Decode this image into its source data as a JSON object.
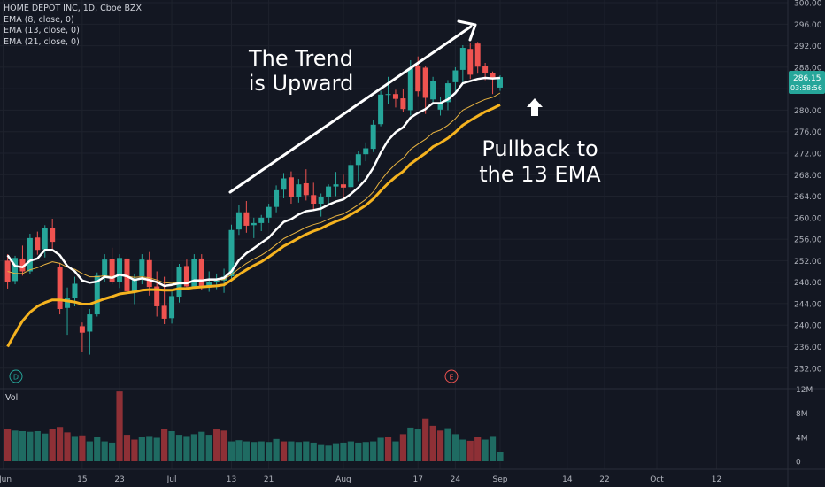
{
  "legend": {
    "title": "HOME DEPOT INC, 1D, Cboe BZX",
    "ema8": "EMA (8, close, 0)",
    "ema13": "EMA (13, close, 0)",
    "ema21": "EMA (21, close, 0)"
  },
  "volume_label": "Vol",
  "annotations": {
    "trend_line1": "The Trend",
    "trend_line2": "is Upward",
    "pullback_line1": "Pullback to",
    "pullback_line2": "the 13 EMA"
  },
  "price_badge": {
    "price": "286.15",
    "timer": "03:58:56"
  },
  "event_markers": {
    "dividend": "D",
    "earnings": "E"
  },
  "colors": {
    "up": "#26a69a",
    "down": "#ef5350",
    "vol_up": "#1f6b62",
    "vol_down": "#8e3036",
    "ema8": "#ffffff",
    "ema13": "#e8b341",
    "ema21": "#f5b31f",
    "background": "#131722",
    "grid": "#1e222d"
  },
  "chart_data": {
    "type": "candlestick",
    "title": "HOME DEPOT INC, 1D, Cboe BZX",
    "y_ticks": [
      232,
      236,
      240,
      244,
      248,
      252,
      256,
      260,
      264,
      268,
      272,
      276,
      280,
      284,
      288,
      292,
      296,
      300
    ],
    "y_tick_labels": [
      "232.00",
      "236.00",
      "240.00",
      "244.00",
      "248.00",
      "252.00",
      "256.00",
      "260.00",
      "264.00",
      "268.00",
      "272.00",
      "276.00",
      "280.00",
      "284.00",
      "288.00",
      "292.00",
      "296.00",
      "300.00"
    ],
    "ylim": [
      228.5,
      300.5
    ],
    "volume_ticks": [
      0,
      4,
      8,
      12
    ],
    "volume_tick_labels": [
      "0",
      "4M",
      "8M",
      "12M"
    ],
    "x_tick_labels": [
      {
        "label": "Jun",
        "bar": -0.6
      },
      {
        "label": "15",
        "bar": 10
      },
      {
        "label": "23",
        "bar": 15
      },
      {
        "label": "Jul",
        "bar": 22
      },
      {
        "label": "13",
        "bar": 30
      },
      {
        "label": "21",
        "bar": 35
      },
      {
        "label": "Aug",
        "bar": 45
      },
      {
        "label": "17",
        "bar": 55
      },
      {
        "label": "24",
        "bar": 60
      },
      {
        "label": "Sep",
        "bar": 66
      },
      {
        "label": "14",
        "bar": 75
      },
      {
        "label": "22",
        "bar": 80
      },
      {
        "label": "Oct",
        "bar": 87
      },
      {
        "label": "12",
        "bar": 95
      }
    ],
    "ohlc": [
      [
        252.0,
        253.2,
        246.8,
        248.1
      ],
      [
        248.2,
        252.9,
        247.6,
        252.5
      ],
      [
        252.4,
        254.8,
        249.2,
        250.0
      ],
      [
        250.0,
        257.0,
        249.5,
        256.2
      ],
      [
        256.3,
        257.4,
        253.1,
        254.0
      ],
      [
        254.1,
        258.6,
        252.6,
        258.0
      ],
      [
        258.0,
        259.8,
        254.2,
        255.5
      ],
      [
        250.8,
        251.6,
        242.0,
        243.0
      ],
      [
        243.2,
        247.0,
        238.2,
        245.0
      ],
      [
        245.1,
        249.0,
        243.5,
        247.7
      ],
      [
        239.8,
        240.5,
        235.0,
        238.6
      ],
      [
        238.8,
        243.0,
        234.5,
        242.0
      ],
      [
        242.0,
        249.8,
        241.6,
        249.2
      ],
      [
        249.2,
        253.2,
        248.0,
        252.2
      ],
      [
        252.3,
        254.4,
        247.6,
        248.1
      ],
      [
        248.1,
        253.2,
        246.9,
        252.5
      ],
      [
        252.4,
        253.2,
        245.7,
        246.3
      ],
      [
        246.3,
        249.6,
        243.9,
        248.7
      ],
      [
        249.1,
        253.2,
        247.6,
        252.2
      ],
      [
        252.1,
        253.6,
        245.5,
        247.1
      ],
      [
        247.2,
        250.0,
        241.6,
        243.5
      ],
      [
        243.6,
        249.0,
        240.2,
        241.2
      ],
      [
        241.3,
        246.2,
        240.3,
        245.4
      ],
      [
        245.3,
        251.4,
        244.2,
        250.9
      ],
      [
        251.0,
        252.2,
        246.6,
        247.2
      ],
      [
        247.2,
        253.2,
        246.8,
        252.3
      ],
      [
        252.4,
        253.2,
        246.6,
        247.1
      ],
      [
        247.1,
        250.0,
        246.2,
        248.0
      ],
      [
        248.1,
        249.6,
        246.7,
        248.3
      ],
      [
        248.3,
        250.5,
        246.0,
        249.0
      ],
      [
        249.1,
        258.7,
        248.4,
        257.7
      ],
      [
        257.8,
        262.3,
        256.8,
        261.0
      ],
      [
        261.0,
        263.1,
        257.2,
        258.5
      ],
      [
        258.6,
        260.0,
        256.2,
        259.0
      ],
      [
        259.0,
        260.5,
        257.5,
        260.0
      ],
      [
        260.0,
        262.6,
        259.0,
        262.0
      ],
      [
        262.0,
        266.0,
        261.0,
        265.1
      ],
      [
        265.2,
        268.3,
        263.6,
        267.3
      ],
      [
        267.5,
        268.6,
        262.6,
        263.8
      ],
      [
        263.8,
        267.2,
        262.8,
        266.2
      ],
      [
        266.4,
        269.0,
        263.2,
        264.2
      ],
      [
        264.2,
        266.5,
        261.4,
        262.6
      ],
      [
        262.6,
        264.5,
        260.2,
        263.8
      ],
      [
        263.8,
        266.2,
        262.6,
        265.8
      ],
      [
        265.8,
        268.5,
        264.0,
        266.2
      ],
      [
        266.2,
        268.0,
        263.5,
        265.6
      ],
      [
        265.7,
        270.6,
        265.2,
        269.8
      ],
      [
        269.8,
        272.4,
        266.8,
        271.8
      ],
      [
        271.8,
        274.0,
        270.5,
        272.9
      ],
      [
        272.8,
        278.1,
        272.2,
        277.3
      ],
      [
        277.4,
        283.6,
        277.0,
        282.9
      ],
      [
        282.9,
        286.2,
        281.2,
        283.0
      ],
      [
        283.0,
        283.8,
        280.5,
        282.1
      ],
      [
        282.2,
        284.0,
        279.6,
        280.2
      ],
      [
        280.0,
        289.3,
        279.0,
        287.8
      ],
      [
        288.2,
        290.0,
        282.6,
        283.5
      ],
      [
        287.9,
        288.2,
        279.3,
        282.3
      ],
      [
        282.0,
        286.2,
        281.0,
        285.5
      ],
      [
        280.1,
        282.5,
        279.0,
        281.3
      ],
      [
        281.5,
        285.6,
        280.0,
        285.0
      ],
      [
        285.2,
        288.0,
        283.2,
        287.4
      ],
      [
        287.5,
        292.1,
        285.2,
        291.6
      ],
      [
        291.4,
        292.5,
        285.8,
        286.6
      ],
      [
        292.4,
        292.7,
        286.8,
        288.1
      ],
      [
        288.2,
        288.8,
        285.6,
        286.9
      ],
      [
        286.9,
        287.2,
        283.0,
        285.8
      ],
      [
        284.2,
        286.5,
        283.6,
        286.15
      ]
    ],
    "volume_millions": [
      [
        5.3,
        "down"
      ],
      [
        5.1,
        "up"
      ],
      [
        5.0,
        "up"
      ],
      [
        4.9,
        "up"
      ],
      [
        5.0,
        "up"
      ],
      [
        4.6,
        "up"
      ],
      [
        5.3,
        "down"
      ],
      [
        5.7,
        "down"
      ],
      [
        4.8,
        "down"
      ],
      [
        4.2,
        "up"
      ],
      [
        4.3,
        "down"
      ],
      [
        3.3,
        "up"
      ],
      [
        4.0,
        "up"
      ],
      [
        3.3,
        "up"
      ],
      [
        3.1,
        "up"
      ],
      [
        11.6,
        "down"
      ],
      [
        4.4,
        "down"
      ],
      [
        3.6,
        "down"
      ],
      [
        4.1,
        "up"
      ],
      [
        4.2,
        "up"
      ],
      [
        3.9,
        "up"
      ],
      [
        5.3,
        "down"
      ],
      [
        5.0,
        "up"
      ],
      [
        4.4,
        "up"
      ],
      [
        4.2,
        "up"
      ],
      [
        4.5,
        "up"
      ],
      [
        4.9,
        "up"
      ],
      [
        4.4,
        "up"
      ],
      [
        5.3,
        "down"
      ],
      [
        5.1,
        "down"
      ],
      [
        3.3,
        "up"
      ],
      [
        3.5,
        "up"
      ],
      [
        3.3,
        "up"
      ],
      [
        3.2,
        "up"
      ],
      [
        3.3,
        "up"
      ],
      [
        3.2,
        "up"
      ],
      [
        3.7,
        "up"
      ],
      [
        3.3,
        "down"
      ],
      [
        3.3,
        "up"
      ],
      [
        3.2,
        "up"
      ],
      [
        3.3,
        "up"
      ],
      [
        3.1,
        "up"
      ],
      [
        2.7,
        "up"
      ],
      [
        2.6,
        "up"
      ],
      [
        3.0,
        "up"
      ],
      [
        3.1,
        "up"
      ],
      [
        3.3,
        "up"
      ],
      [
        3.1,
        "up"
      ],
      [
        3.2,
        "up"
      ],
      [
        3.3,
        "up"
      ],
      [
        3.9,
        "up"
      ],
      [
        4.0,
        "down"
      ],
      [
        3.3,
        "up"
      ],
      [
        4.5,
        "down"
      ],
      [
        5.6,
        "up"
      ],
      [
        5.3,
        "up"
      ],
      [
        7.1,
        "down"
      ],
      [
        5.9,
        "down"
      ],
      [
        5.1,
        "down"
      ],
      [
        5.5,
        "up"
      ],
      [
        4.5,
        "up"
      ],
      [
        3.6,
        "up"
      ],
      [
        3.4,
        "down"
      ],
      [
        4.0,
        "down"
      ],
      [
        3.6,
        "up"
      ],
      [
        4.2,
        "up"
      ],
      [
        1.6,
        "up"
      ]
    ],
    "ema8": [
      253.0,
      251.0,
      250.8,
      252.0,
      252.4,
      254.0,
      254.0,
      253.0,
      251.0,
      250.0,
      248.3,
      247.9,
      248.1,
      249.0,
      248.8,
      249.4,
      249.1,
      248.4,
      248.7,
      248.4,
      248.0,
      247.3,
      247.5,
      247.8,
      247.8,
      248.3,
      248.3,
      248.5,
      248.5,
      248.8,
      250.0,
      252.1,
      253.4,
      254.3,
      255.3,
      256.3,
      257.8,
      259.2,
      259.7,
      260.6,
      261.2,
      261.4,
      261.7,
      262.4,
      263.0,
      263.4,
      264.4,
      265.6,
      267.1,
      269.3,
      272.1,
      274.4,
      275.9,
      276.8,
      278.6,
      279.5,
      280.2,
      281.3,
      281.3,
      282.0,
      283.2,
      285.0,
      285.4,
      285.8,
      286.0,
      285.9,
      286.0
    ],
    "ema13": [
      250.0,
      249.6,
      249.6,
      250.3,
      250.7,
      251.3,
      251.8,
      251.5,
      250.8,
      250.4,
      249.6,
      249.0,
      249.0,
      249.2,
      249.0,
      249.4,
      249.1,
      248.9,
      249.0,
      248.8,
      248.4,
      247.9,
      247.8,
      248.0,
      248.0,
      248.3,
      248.3,
      248.4,
      248.4,
      248.5,
      249.4,
      250.5,
      251.5,
      252.3,
      253.0,
      253.9,
      255.0,
      256.1,
      256.8,
      257.5,
      258.2,
      258.7,
      259.1,
      259.7,
      260.3,
      260.7,
      261.5,
      262.4,
      263.4,
      264.8,
      266.9,
      268.6,
      270.0,
      271.0,
      272.7,
      273.7,
      274.6,
      275.8,
      276.3,
      277.2,
      278.4,
      280.0,
      280.7,
      281.4,
      282.0,
      282.4,
      283.2
    ],
    "ema21": [
      236.0,
      238.5,
      240.8,
      242.4,
      243.5,
      244.2,
      244.7,
      244.7,
      244.5,
      244.3,
      243.9,
      243.9,
      244.4,
      244.9,
      245.3,
      245.8,
      246.0,
      246.2,
      246.5,
      246.6,
      246.6,
      246.5,
      246.5,
      246.8,
      246.8,
      247.0,
      247.1,
      247.2,
      247.3,
      247.5,
      248.4,
      249.4,
      250.3,
      251.1,
      251.8,
      252.7,
      253.7,
      254.7,
      255.4,
      256.2,
      256.9,
      257.5,
      258.0,
      258.7,
      259.3,
      259.8,
      260.6,
      261.4,
      262.3,
      263.5,
      265.0,
      266.4,
      267.6,
      268.6,
      270.0,
      271.0,
      272.0,
      273.2,
      273.9,
      274.8,
      275.9,
      277.2,
      278.1,
      278.9,
      279.7,
      280.3,
      281.0
    ]
  }
}
